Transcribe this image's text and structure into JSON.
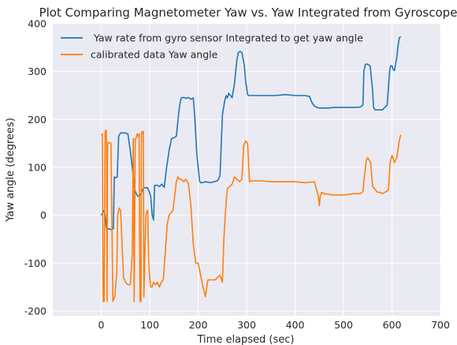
{
  "chart_data": {
    "type": "line",
    "title": "Plot Comparing Magnetometer Yaw vs. Yaw Integrated from Gyroscope",
    "xlabel": "Time elapsed (sec)",
    "ylabel": "Yaw angle (degrees)",
    "xlim": [
      -100,
      700
    ],
    "ylim": [
      -210,
      400
    ],
    "xticks": [
      0,
      100,
      200,
      300,
      400,
      500,
      600,
      700
    ],
    "yticks": [
      -200,
      -100,
      0,
      100,
      200,
      300,
      400
    ],
    "grid": true,
    "background": "#eaeaf2",
    "legend_position": "top-left",
    "series": [
      {
        "name": " Yaw rate from gyro sensor Integrated to get yaw angle",
        "color": "#1f77b4",
        "x": [
          0,
          5,
          8,
          11,
          15,
          20,
          25,
          27,
          30,
          33,
          36,
          40,
          43,
          48,
          55,
          57,
          60,
          65,
          70,
          75,
          79,
          82,
          85,
          88,
          92,
          95,
          98,
          102,
          105,
          108,
          110,
          115,
          120,
          125,
          130,
          135,
          140,
          145,
          150,
          155,
          160,
          162,
          165,
          170,
          175,
          180,
          185,
          190,
          193,
          197,
          200,
          203,
          205,
          208,
          215,
          225,
          240,
          245,
          250,
          255,
          258,
          260,
          262,
          263,
          265,
          267,
          270,
          275,
          280,
          283,
          286,
          290,
          295,
          298,
          302,
          305,
          312,
          320,
          340,
          360,
          380,
          400,
          420,
          430,
          435,
          440,
          445,
          450,
          460,
          470,
          480,
          500,
          525,
          535,
          540,
          542,
          545,
          548,
          550,
          555,
          560,
          562,
          565,
          570,
          575,
          580,
          590,
          595,
          597,
          600,
          602,
          605,
          610,
          612,
          615,
          618
        ],
        "values": [
          0,
          10,
          0,
          -30,
          -28,
          -30,
          -28,
          80,
          78,
          80,
          165,
          172,
          172,
          172,
          170,
          155,
          135,
          90,
          50,
          40,
          40,
          45,
          52,
          58,
          57,
          58,
          52,
          40,
          0,
          -10,
          62,
          63,
          60,
          65,
          58,
          100,
          135,
          160,
          162,
          165,
          215,
          230,
          245,
          246,
          244,
          246,
          242,
          245,
          205,
          130,
          100,
          72,
          68,
          68,
          70,
          68,
          72,
          82,
          210,
          240,
          250,
          245,
          250,
          255,
          252,
          250,
          245,
          275,
          325,
          340,
          342,
          340,
          315,
          280,
          252,
          250,
          250,
          250,
          250,
          250,
          252,
          250,
          250,
          248,
          235,
          228,
          225,
          224,
          224,
          224,
          225,
          225,
          225,
          226,
          230,
          300,
          315,
          316,
          315,
          312,
          260,
          225,
          220,
          220,
          220,
          220,
          230,
          300,
          312,
          312,
          305,
          302,
          330,
          350,
          370,
          373
        ]
      },
      {
        "name": "calibrated data Yaw angle",
        "color": "#ff7f0e",
        "x": [
          0,
          2,
          4,
          6,
          8,
          10,
          11,
          12,
          13,
          16,
          20,
          24,
          28,
          32,
          34,
          37,
          40,
          43,
          46,
          50,
          55,
          60,
          64,
          66,
          68,
          70,
          72,
          74,
          76,
          78,
          80,
          82,
          83,
          84,
          86,
          87,
          88,
          90,
          92,
          94,
          96,
          98,
          100,
          102,
          105,
          108,
          112,
          116,
          120,
          124,
          128,
          132,
          136,
          140,
          148,
          155,
          158,
          162,
          165,
          170,
          175,
          180,
          185,
          190,
          195,
          200,
          205,
          210,
          215,
          220,
          228,
          235,
          240,
          245,
          250,
          253,
          256,
          260,
          265,
          270,
          275,
          280,
          285,
          290,
          294,
          298,
          302,
          306,
          310,
          330,
          350,
          370,
          390,
          400,
          420,
          440,
          448,
          450,
          452,
          455,
          460,
          480,
          500,
          520,
          535,
          540,
          543,
          547,
          550,
          553,
          556,
          560,
          570,
          575,
          580,
          585,
          590,
          593,
          596,
          600,
          605,
          610,
          615,
          618
        ],
        "values": [
          168,
          170,
          -180,
          -180,
          175,
          178,
          150,
          -180,
          150,
          152,
          150,
          -180,
          -170,
          -120,
          0,
          15,
          10,
          -60,
          -130,
          -140,
          -145,
          -145,
          -80,
          160,
          -180,
          160,
          160,
          170,
          165,
          170,
          -180,
          -180,
          170,
          175,
          170,
          175,
          -170,
          -90,
          0,
          8,
          10,
          -100,
          -130,
          -150,
          -150,
          -140,
          -145,
          -140,
          -150,
          -140,
          -135,
          -80,
          -20,
          0,
          10,
          70,
          80,
          75,
          75,
          70,
          75,
          65,
          20,
          -60,
          -100,
          -100,
          -125,
          -150,
          -170,
          -135,
          -135,
          -135,
          -130,
          -125,
          -140,
          -50,
          0,
          55,
          60,
          65,
          80,
          75,
          70,
          75,
          145,
          155,
          150,
          70,
          72,
          72,
          70,
          70,
          70,
          70,
          68,
          70,
          40,
          20,
          40,
          48,
          45,
          42,
          42,
          45,
          45,
          50,
          80,
          115,
          120,
          115,
          110,
          60,
          48,
          48,
          45,
          48,
          50,
          55,
          110,
          125,
          110,
          120,
          155,
          168
        ]
      }
    ]
  }
}
